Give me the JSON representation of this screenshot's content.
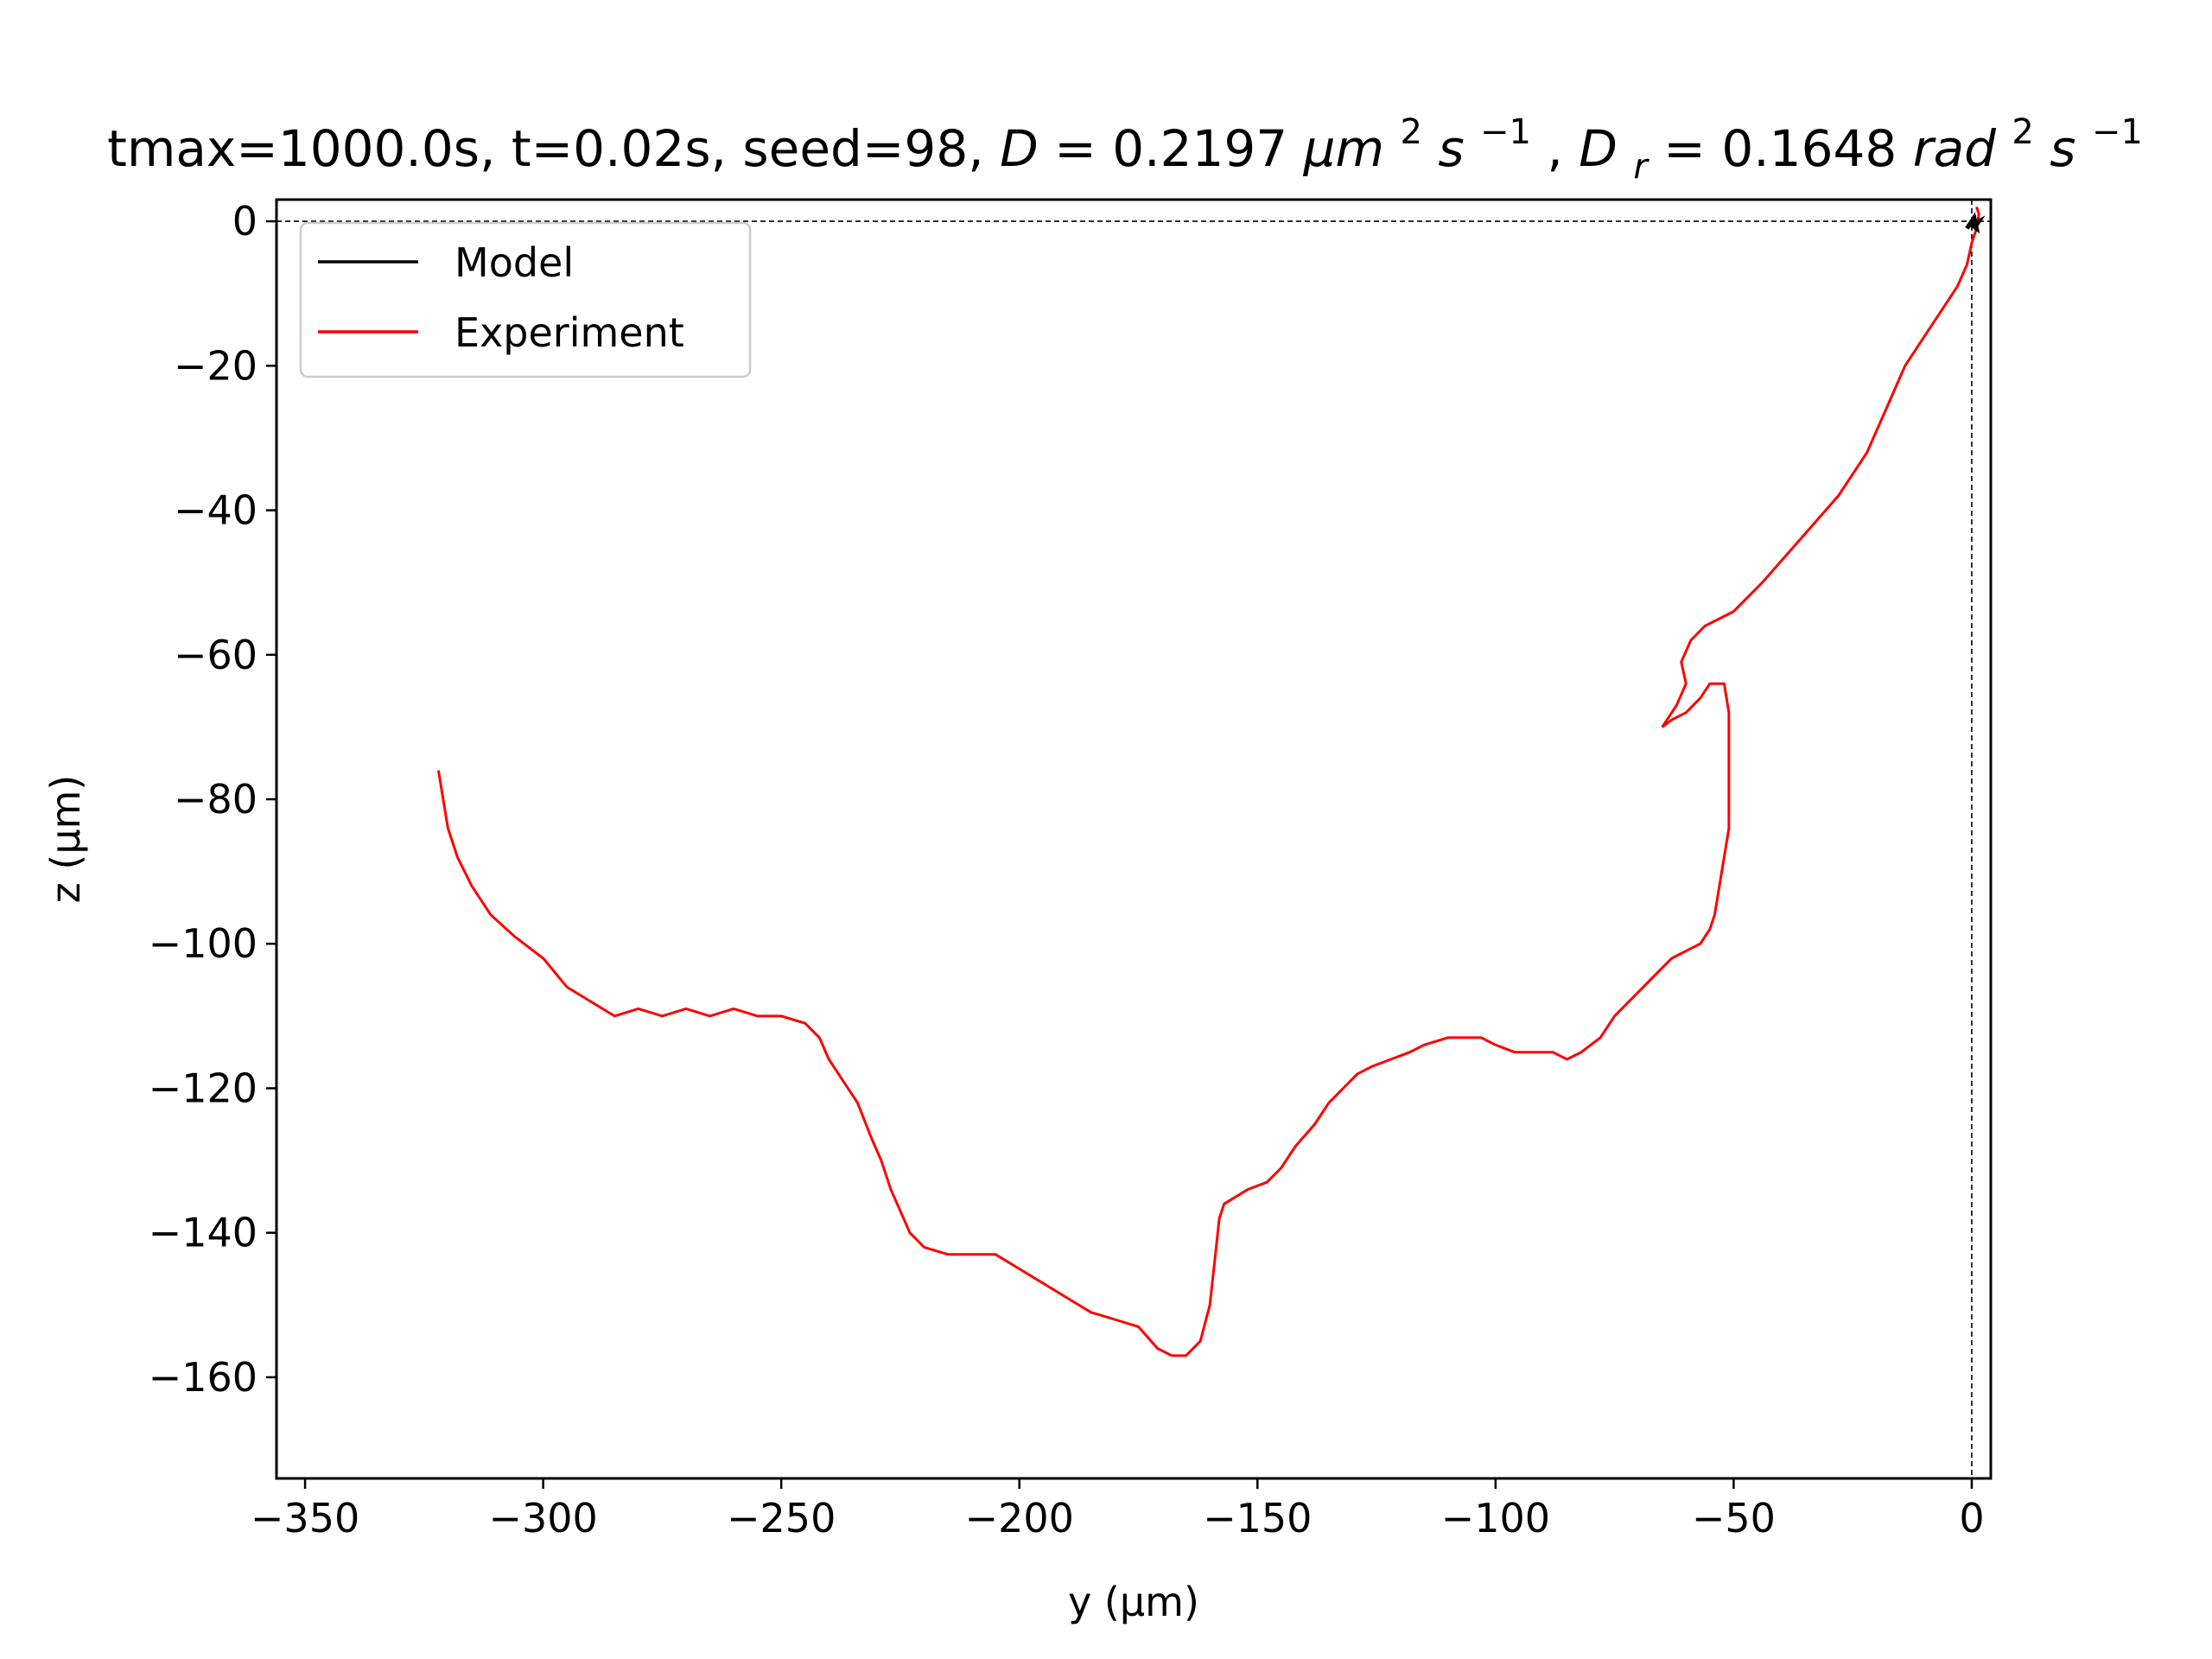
{
  "chart_data": {
    "type": "line",
    "title": {
      "plain": "tmax=1000.0s, t=0.02s, seed=98, ",
      "D_sym": "D",
      "D_eq": " = 0.2197",
      "D_unit": "μm",
      "D_unit_exp1": "2",
      "D_unit_s": "s",
      "D_unit_exp2": "−1",
      "sep": ", ",
      "Dr_sym": "D",
      "Dr_sub": "r",
      "Dr_eq": " = 0.1648",
      "Dr_unit": "rad",
      "Dr_unit_exp1": "2",
      "Dr_unit_s": "s",
      "Dr_unit_exp2": "−1"
    },
    "xlabel": "y (μm)",
    "ylabel": "z (μm)",
    "xlim": [
      -356,
      4
    ],
    "ylim": [
      -174,
      3
    ],
    "xticks": [
      -350,
      -300,
      -250,
      -200,
      -150,
      -100,
      -50,
      0
    ],
    "xtick_labels": [
      "−350",
      "−300",
      "−250",
      "−200",
      "−150",
      "−100",
      "−50",
      "0"
    ],
    "yticks": [
      0,
      -20,
      -40,
      -60,
      -80,
      -100,
      -120,
      -140,
      -160
    ],
    "ytick_labels": [
      "0",
      "−20",
      "−40",
      "−60",
      "−80",
      "−100",
      "−120",
      "−140",
      "−160"
    ],
    "grid": false,
    "legend_position": "upper-left",
    "reference_lines": {
      "horizontal_at_z": 0,
      "vertical_at_y": 0,
      "style": "dashed",
      "color": "#000000"
    },
    "series": [
      {
        "name": "Model",
        "color": "#000000",
        "points": [
          [
            0,
            0
          ],
          [
            -1,
            -1
          ],
          [
            0.5,
            0.5
          ],
          [
            1,
            -1
          ],
          [
            0,
            -0.5
          ],
          [
            1.5,
            0
          ],
          [
            0.5,
            -1
          ]
        ]
      },
      {
        "name": "Experiment",
        "color": "#ff0000",
        "points": [
          [
            -322,
            -76
          ],
          [
            -321,
            -80
          ],
          [
            -320,
            -84
          ],
          [
            -318,
            -88
          ],
          [
            -315,
            -92
          ],
          [
            -311,
            -96
          ],
          [
            -306,
            -99
          ],
          [
            -300,
            -102
          ],
          [
            -295,
            -106
          ],
          [
            -290,
            -108
          ],
          [
            -285,
            -110
          ],
          [
            -280,
            -109
          ],
          [
            -275,
            -110
          ],
          [
            -270,
            -109
          ],
          [
            -265,
            -110
          ],
          [
            -260,
            -109
          ],
          [
            -255,
            -110
          ],
          [
            -250,
            -110
          ],
          [
            -245,
            -111
          ],
          [
            -242,
            -113
          ],
          [
            -240,
            -116
          ],
          [
            -237,
            -119
          ],
          [
            -234,
            -122
          ],
          [
            -231,
            -127
          ],
          [
            -229,
            -130
          ],
          [
            -227,
            -134
          ],
          [
            -225,
            -137
          ],
          [
            -223,
            -140
          ],
          [
            -220,
            -142
          ],
          [
            -215,
            -143
          ],
          [
            -210,
            -143
          ],
          [
            -205,
            -143
          ],
          [
            -200,
            -145
          ],
          [
            -195,
            -147
          ],
          [
            -190,
            -149
          ],
          [
            -185,
            -151
          ],
          [
            -180,
            -152
          ],
          [
            -175,
            -153
          ],
          [
            -171,
            -156
          ],
          [
            -168,
            -157
          ],
          [
            -165,
            -157
          ],
          [
            -162,
            -155
          ],
          [
            -160,
            -150
          ],
          [
            -159,
            -144
          ],
          [
            -158,
            -138
          ],
          [
            -157,
            -136
          ],
          [
            -152,
            -134
          ],
          [
            -148,
            -133
          ],
          [
            -145,
            -131
          ],
          [
            -142,
            -128
          ],
          [
            -138,
            -125
          ],
          [
            -135,
            -122
          ],
          [
            -132,
            -120
          ],
          [
            -129,
            -118
          ],
          [
            -126,
            -117
          ],
          [
            -122,
            -116
          ],
          [
            -118,
            -115
          ],
          [
            -115,
            -114
          ],
          [
            -110,
            -113
          ],
          [
            -106,
            -113
          ],
          [
            -103,
            -113
          ],
          [
            -100,
            -114
          ],
          [
            -96,
            -115
          ],
          [
            -92,
            -115
          ],
          [
            -88,
            -115
          ],
          [
            -85,
            -116
          ],
          [
            -82,
            -115
          ],
          [
            -78,
            -113
          ],
          [
            -75,
            -110
          ],
          [
            -72,
            -108
          ],
          [
            -69,
            -106
          ],
          [
            -66,
            -104
          ],
          [
            -63,
            -102
          ],
          [
            -60,
            -101
          ],
          [
            -57,
            -100
          ],
          [
            -55,
            -98
          ],
          [
            -54,
            -96
          ],
          [
            -53,
            -92
          ],
          [
            -52,
            -88
          ],
          [
            -51,
            -84
          ],
          [
            -51,
            -80
          ],
          [
            -51,
            -76
          ],
          [
            -51,
            -72
          ],
          [
            -51,
            -68
          ],
          [
            -52,
            -64
          ],
          [
            -55,
            -64
          ],
          [
            -57,
            -66
          ],
          [
            -60,
            -68
          ],
          [
            -63,
            -69
          ],
          [
            -65,
            -70
          ],
          [
            -62,
            -67
          ],
          [
            -60,
            -64
          ],
          [
            -61,
            -61
          ],
          [
            -59,
            -58
          ],
          [
            -56,
            -56
          ],
          [
            -53,
            -55
          ],
          [
            -50,
            -54
          ],
          [
            -47,
            -52
          ],
          [
            -44,
            -50
          ],
          [
            -40,
            -47
          ],
          [
            -36,
            -44
          ],
          [
            -32,
            -41
          ],
          [
            -28,
            -38
          ],
          [
            -25,
            -35
          ],
          [
            -22,
            -32
          ],
          [
            -20,
            -29
          ],
          [
            -18,
            -26
          ],
          [
            -16,
            -23
          ],
          [
            -14,
            -20
          ],
          [
            -11,
            -17
          ],
          [
            -8,
            -14
          ],
          [
            -5,
            -11
          ],
          [
            -3,
            -9
          ],
          [
            -1,
            -6
          ],
          [
            0,
            -3
          ],
          [
            1,
            -1
          ],
          [
            1.5,
            1
          ],
          [
            1,
            2
          ]
        ]
      }
    ]
  }
}
